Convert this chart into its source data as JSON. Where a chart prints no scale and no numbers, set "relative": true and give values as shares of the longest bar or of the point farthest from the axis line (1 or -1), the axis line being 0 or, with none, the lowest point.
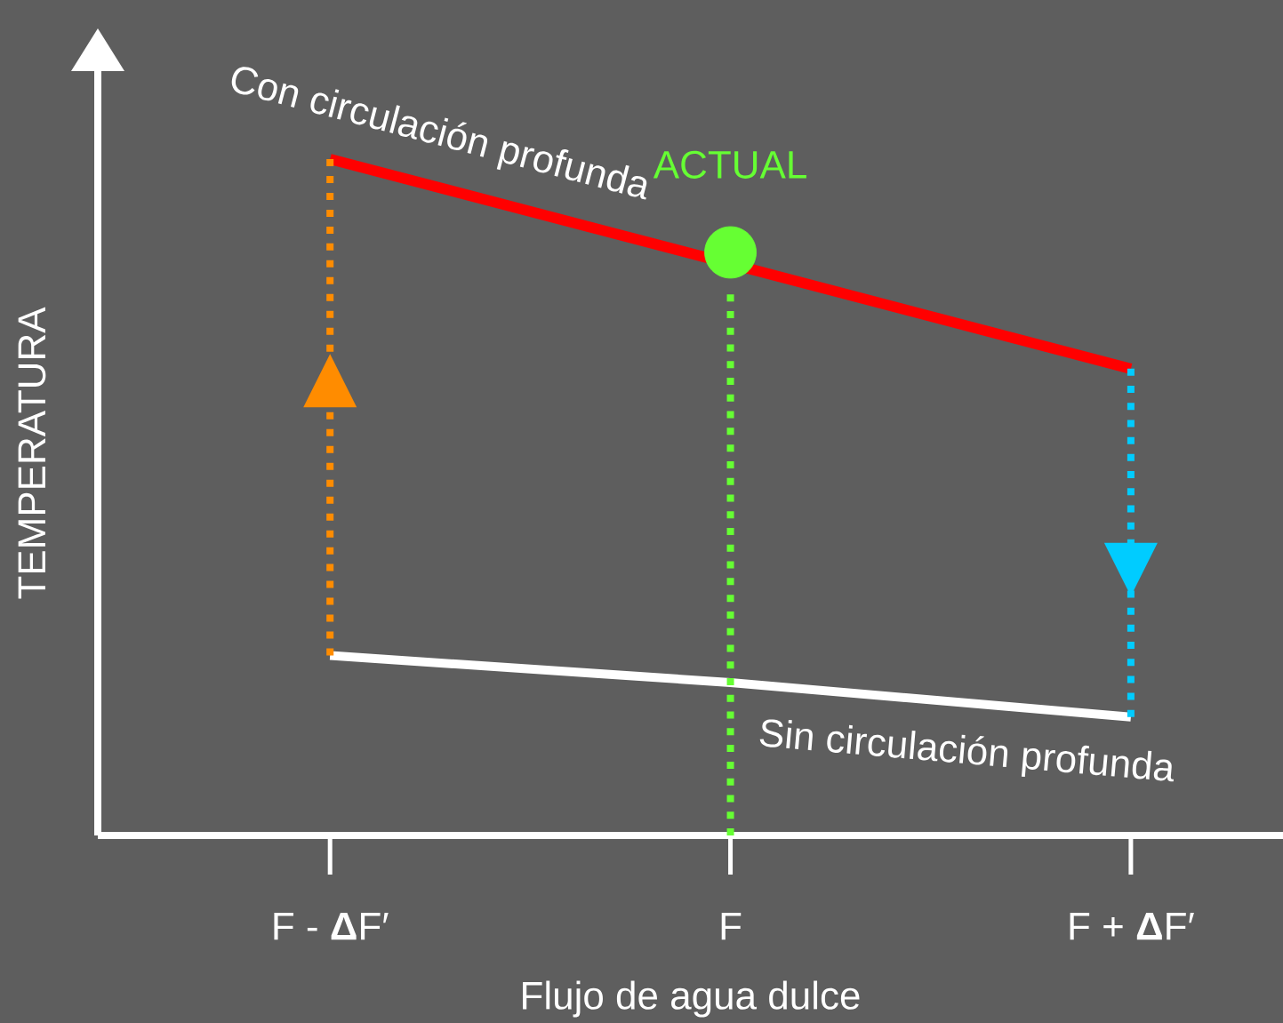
{
  "chart_data": {
    "type": "line",
    "relative": true,
    "xlabel": "Flujo de agua dulce",
    "ylabel": "TEMPERATURA",
    "categories": [
      "F - **Δ**F′",
      "F",
      "F + **Δ**F′"
    ],
    "tick_labels": "x",
    "series": [
      {
        "name": "Con circulación profunda",
        "color": "#ff0000",
        "x": [
          "F - **Δ**F′",
          "F + **Δ**F′"
        ],
        "values": [
          1.0,
          0.69
        ]
      },
      {
        "name": "Sin circulación profunda",
        "color": "#ffffff",
        "values": [
          0.266,
          0.226,
          0.175
        ]
      },
      {
        "color": "#ff8c00",
        "x": [
          "F - **Δ**F′",
          "F - **Δ**F′"
        ],
        "values": [
          0.266,
          1.0
        ],
        "line_style": "dotted"
      },
      {
        "color": "#66ff33",
        "x": [
          "F",
          "F"
        ],
        "values": [
          0.8,
          0
        ],
        "line_style": "dotted"
      },
      {
        "color": "#00ccff",
        "x": [
          "F + **Δ**F′",
          "F + **Δ**F′"
        ],
        "values": [
          0.69,
          0.175
        ],
        "line_style": "dotted"
      },
      {
        "type": "scatter",
        "marker": "circle",
        "color": "#66ff33",
        "x": [
          "F"
        ],
        "values": [
          0.862
        ]
      }
    ],
    "annotations": [
      {
        "text": "ACTUAL",
        "x": "F",
        "y": 0.862
      }
    ]
  }
}
